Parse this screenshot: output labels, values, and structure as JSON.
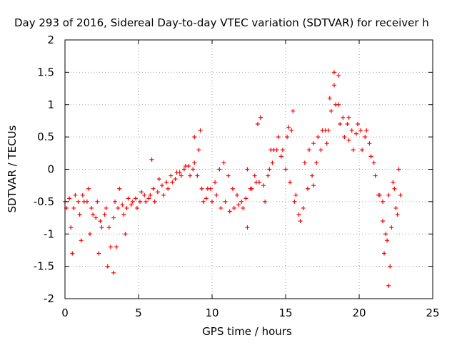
{
  "chart_data": {
    "type": "scatter",
    "title": "Day 293 of 2016, Sidereal Day-to-day VTEC variation (SDTVAR) for receiver h",
    "xlabel": "GPS time / hours",
    "ylabel": "SDTVAR / TECUs",
    "xlim": [
      0,
      25
    ],
    "ylim": [
      -2,
      2
    ],
    "xticks": [
      "0",
      "5",
      "10",
      "15",
      "20",
      "25"
    ],
    "yticks": [
      "-2",
      "-1.5",
      "-1",
      "-0.5",
      "0",
      "0.5",
      "1",
      "1.5",
      "2"
    ],
    "grid": true,
    "legend": "none",
    "marker": "+",
    "color": "#ff0000",
    "series": [
      {
        "x": [
          0.0,
          0.3,
          0.6,
          0.9,
          1.2,
          1.5,
          1.8,
          2.1,
          2.4,
          2.7,
          3.0,
          3.3,
          3.6,
          3.9,
          4.2,
          4.5,
          4.8,
          5.1,
          5.4,
          5.7,
          6.0,
          6.3,
          6.6,
          6.9,
          7.2,
          7.5,
          7.8,
          8.1,
          8.4,
          8.7,
          9.0,
          9.3,
          9.6,
          9.9,
          10.2,
          10.5,
          10.8,
          11.1,
          11.4,
          11.7,
          12.0,
          12.3,
          12.6,
          12.9,
          13.2,
          13.5,
          13.8,
          14.1,
          14.4,
          14.7,
          15.0,
          15.3,
          15.6,
          15.9,
          16.2,
          16.5,
          16.8,
          17.1,
          17.4,
          17.7,
          18.0,
          18.3,
          18.6,
          18.9,
          19.2,
          19.5,
          19.8,
          20.1,
          20.4,
          20.7,
          21.0,
          21.3,
          21.6,
          21.9,
          22.2,
          22.5,
          22.8
        ],
        "y": [
          -0.5,
          -0.45,
          -0.6,
          -0.5,
          -0.4,
          -0.5,
          -0.6,
          -0.75,
          -0.8,
          -0.7,
          -0.9,
          -0.75,
          -0.6,
          -0.55,
          -0.6,
          -0.55,
          -0.45,
          -0.5,
          -0.4,
          -0.45,
          -0.3,
          -0.35,
          -0.25,
          -0.2,
          -0.1,
          -0.15,
          -0.05,
          0.0,
          0.05,
          0.0,
          -0.1,
          -0.3,
          -0.45,
          -0.3,
          -0.2,
          0.0,
          0.1,
          -0.1,
          -0.3,
          -0.4,
          -0.5,
          -0.45,
          -0.3,
          -0.1,
          -0.2,
          -0.25,
          -0.1,
          0.1,
          0.3,
          0.2,
          0.0,
          -0.2,
          -0.5,
          -0.7,
          -0.6,
          -0.3,
          -0.1,
          0.1,
          0.3,
          0.6,
          1.1,
          1.3,
          1.0,
          0.8,
          0.7,
          0.6,
          0.55,
          0.6,
          0.5,
          0.4,
          0.1,
          -0.4,
          -0.8,
          -1.1,
          -0.9,
          -0.6,
          -0.4
        ]
      },
      {
        "x": [
          0.1,
          0.4,
          0.7,
          1.0,
          1.3,
          1.6,
          1.9,
          2.2,
          2.5,
          2.8,
          3.1,
          3.4,
          3.7,
          4.0,
          4.3,
          4.6,
          4.9,
          5.2,
          5.5,
          5.8,
          6.1,
          6.4,
          6.7,
          7.0,
          7.3,
          7.6,
          7.9,
          8.2,
          8.5,
          8.8,
          9.1,
          9.4,
          9.7,
          10.0,
          10.3,
          10.6,
          10.9,
          11.2,
          11.5,
          11.8,
          12.1,
          12.4,
          12.7,
          13.0,
          13.3,
          13.6,
          13.9,
          14.2,
          14.5,
          14.8,
          15.1,
          15.4,
          15.7,
          16.0,
          16.3,
          16.6,
          16.9,
          17.2,
          17.5,
          17.8,
          18.1,
          18.4,
          18.7,
          19.0,
          19.3,
          19.6,
          19.9,
          20.2,
          20.5,
          20.8,
          21.1,
          21.4,
          21.7,
          22.0,
          22.3,
          22.6
        ],
        "y": [
          -0.6,
          -0.9,
          -0.4,
          -0.7,
          -0.5,
          -0.3,
          -0.7,
          -0.5,
          -0.9,
          -0.6,
          -1.2,
          -0.5,
          -0.3,
          -0.7,
          -0.45,
          -0.5,
          -0.6,
          -0.35,
          -0.5,
          -0.4,
          -0.5,
          -0.15,
          -0.4,
          -0.3,
          -0.2,
          -0.05,
          -0.1,
          0.05,
          -0.1,
          0.1,
          0.3,
          -0.5,
          -0.3,
          -0.5,
          -0.4,
          -0.6,
          -0.5,
          -0.65,
          -0.6,
          -0.55,
          -0.6,
          0.0,
          -0.3,
          -0.2,
          0.8,
          -0.5,
          0.0,
          0.3,
          0.5,
          0.3,
          0.5,
          0.6,
          -0.4,
          -0.8,
          0.1,
          0.3,
          0.4,
          0.5,
          0.6,
          0.4,
          0.9,
          1.0,
          0.7,
          0.5,
          0.45,
          0.3,
          0.7,
          0.3,
          0.6,
          0.2,
          -0.1,
          -0.4,
          -1.3,
          -0.4,
          -0.2,
          -0.7
        ]
      },
      {
        "x": [
          0.5,
          1.1,
          1.7,
          2.3,
          2.9,
          3.3,
          3.5,
          4.1,
          5.9,
          8.8,
          9.2,
          12.4,
          13.1,
          13.3,
          14.0,
          15.2,
          15.5,
          16.9,
          17.9,
          18.3,
          18.6,
          19.3,
          21.6,
          21.8,
          22.0,
          22.1,
          22.4,
          22.7
        ],
        "y": [
          -1.3,
          -1.1,
          -1.0,
          -1.3,
          -1.5,
          -1.6,
          -1.2,
          -1.0,
          0.15,
          0.5,
          0.6,
          -0.9,
          0.7,
          0.8,
          0.3,
          0.65,
          0.9,
          -0.25,
          0.6,
          1.5,
          1.45,
          0.8,
          -0.5,
          -1.0,
          -1.8,
          -1.5,
          -0.3,
          0.0
        ]
      }
    ]
  }
}
